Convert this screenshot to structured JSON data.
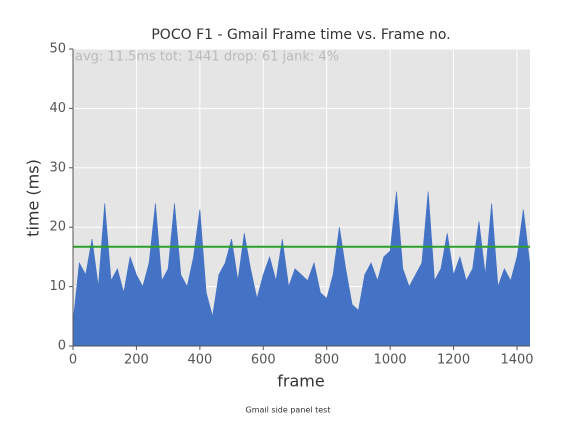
{
  "chart_data": {
    "type": "area",
    "title": "POCO F1 - Gmail Frame time vs. Frame no.",
    "annotation": "avg: 11.5ms tot: 1441 drop: 61 jank: 4%",
    "caption": "Gmail side panel test",
    "xlabel": "frame",
    "ylabel": "time (ms)",
    "x": [
      0,
      20,
      40,
      60,
      80,
      100,
      120,
      140,
      160,
      180,
      200,
      220,
      240,
      260,
      280,
      300,
      320,
      340,
      360,
      380,
      400,
      420,
      440,
      460,
      480,
      500,
      520,
      540,
      560,
      580,
      600,
      620,
      640,
      660,
      680,
      700,
      720,
      740,
      760,
      780,
      800,
      820,
      840,
      860,
      880,
      900,
      920,
      940,
      960,
      980,
      1000,
      1020,
      1040,
      1060,
      1080,
      1100,
      1120,
      1140,
      1160,
      1180,
      1200,
      1220,
      1240,
      1260,
      1280,
      1300,
      1320,
      1340,
      1360,
      1380,
      1400,
      1420,
      1440
    ],
    "series": [
      {
        "name": "frame time",
        "color": "#4472c4",
        "values": [
          4,
          14,
          12,
          18,
          10,
          24,
          11,
          13,
          9,
          15,
          12,
          10,
          14,
          24,
          11,
          13,
          24,
          12,
          10,
          15,
          23,
          9,
          5,
          12,
          14,
          18,
          11,
          19,
          13,
          8,
          12,
          15,
          11,
          18,
          10,
          13,
          12,
          11,
          14,
          9,
          8,
          12,
          20,
          13,
          7,
          6,
          12,
          14,
          11,
          15,
          16,
          26,
          13,
          10,
          12,
          14,
          26,
          11,
          13,
          19,
          12,
          15,
          11,
          13,
          21,
          12,
          24,
          10,
          13,
          11,
          15,
          23,
          14
        ]
      }
    ],
    "threshold": {
      "value": 16.7,
      "color": "#2ca02c"
    },
    "xlim": [
      0,
      1441
    ],
    "ylim": [
      0,
      50
    ],
    "xticks": [
      0,
      200,
      400,
      600,
      800,
      1000,
      1200,
      1400
    ],
    "yticks": [
      0,
      10,
      20,
      30,
      40,
      50
    ],
    "grid": true
  }
}
